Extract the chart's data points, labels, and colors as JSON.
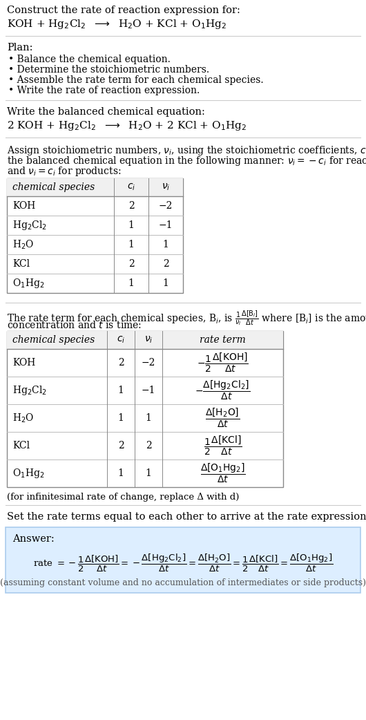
{
  "title_text": "Construct the rate of reaction expression for:",
  "plan_header": "Plan:",
  "plan_items": [
    "• Balance the chemical equation.",
    "• Determine the stoichiometric numbers.",
    "• Assemble the rate term for each chemical species.",
    "• Write the rate of reaction expression."
  ],
  "balanced_header": "Write the balanced chemical equation:",
  "table1_headers": [
    "chemical species",
    "c_i",
    "v_i"
  ],
  "table1_rows": [
    [
      "KOH",
      "2",
      "−2"
    ],
    [
      "Hg₂Cl₂",
      "1",
      "−1"
    ],
    [
      "H₂O",
      "1",
      "1"
    ],
    [
      "KCl",
      "2",
      "2"
    ],
    [
      "O₁Hg₂",
      "1",
      "1"
    ]
  ],
  "table2_rows": [
    [
      "KOH",
      "2",
      "−2"
    ],
    [
      "Hg₂Cl₂",
      "1",
      "−1"
    ],
    [
      "H₂O",
      "1",
      "1"
    ],
    [
      "KCl",
      "2",
      "2"
    ],
    [
      "O₁Hg₂",
      "1",
      "1"
    ]
  ],
  "infinitesimal_note": "(for infinitesimal rate of change, replace Δ with d)",
  "set_equal_text": "Set the rate terms equal to each other to arrive at the rate expression:",
  "answer_label": "Answer:",
  "answer_note": "(assuming constant volume and no accumulation of intermediates or side products)",
  "bg_color": "#ffffff",
  "answer_box_color": "#ddeeff",
  "answer_box_border": "#aaccee"
}
